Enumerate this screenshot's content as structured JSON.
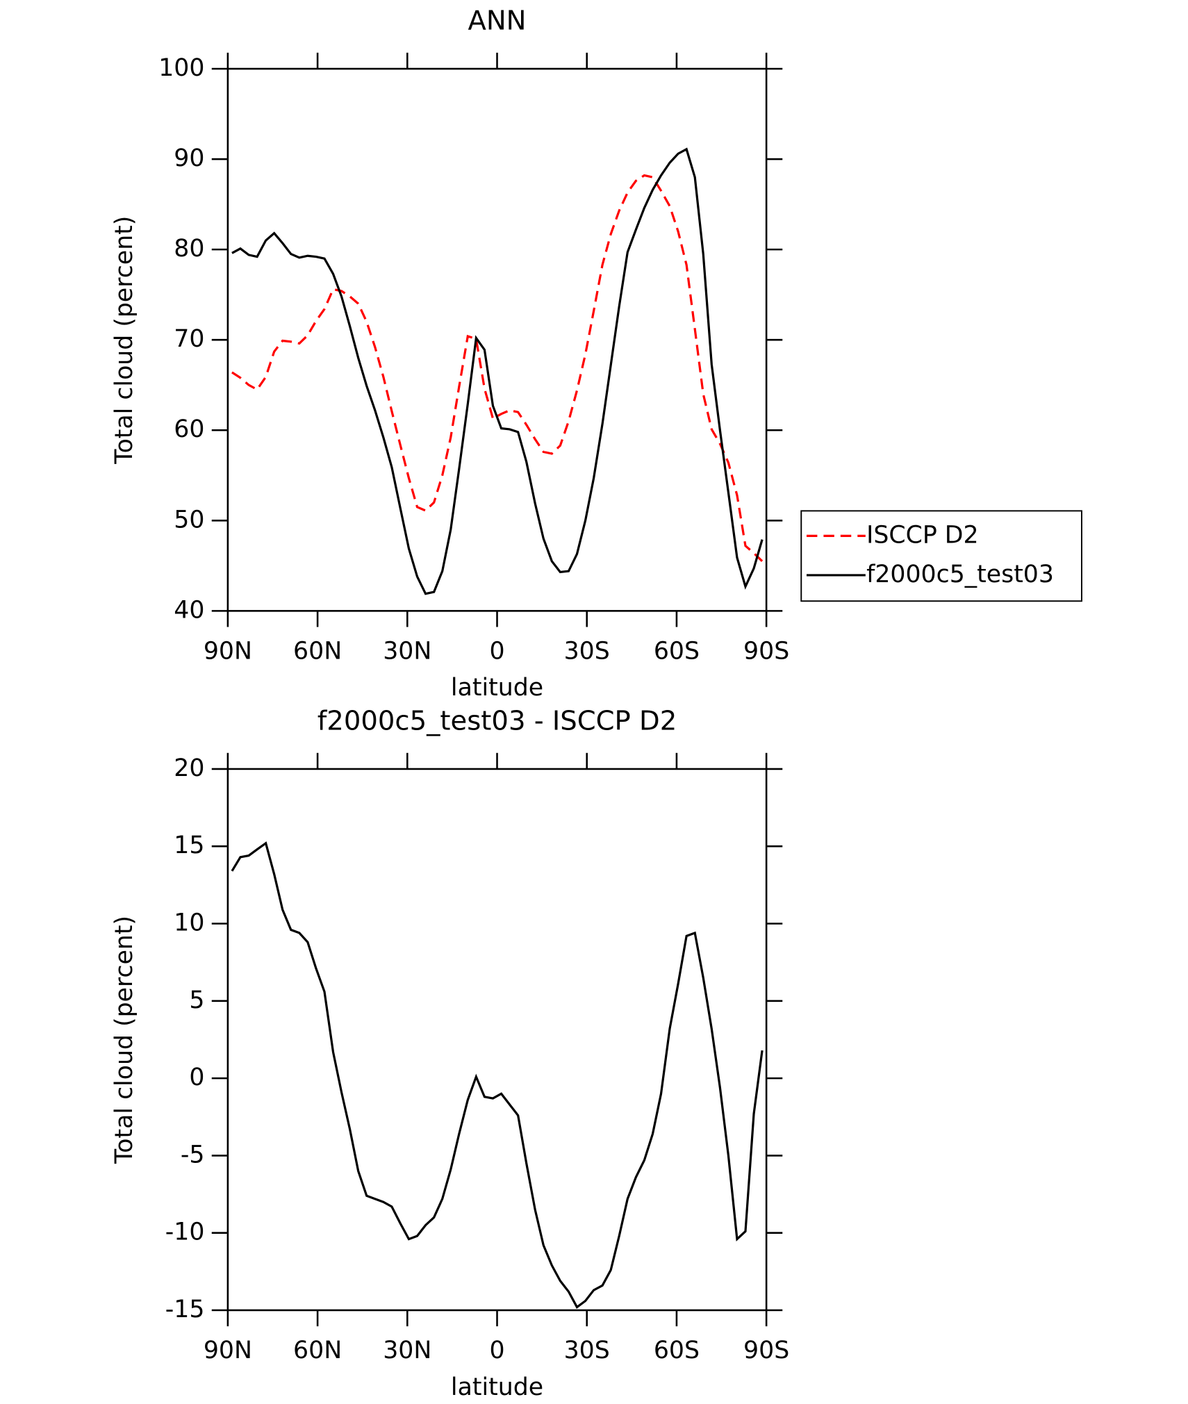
{
  "chart_data": [
    {
      "type": "line",
      "title": "ANN",
      "xlabel": "latitude",
      "ylabel": "Total cloud (percent)",
      "x": [
        88.6,
        85.8,
        83.0,
        80.2,
        77.3,
        74.5,
        71.7,
        68.9,
        66.1,
        63.3,
        60.5,
        57.7,
        54.8,
        52.0,
        49.2,
        46.4,
        43.6,
        40.8,
        38.0,
        35.2,
        32.3,
        29.5,
        26.7,
        23.9,
        21.1,
        18.3,
        15.5,
        12.7,
        9.8,
        7.0,
        4.2,
        1.4,
        -1.4,
        -4.2,
        -7.0,
        -9.8,
        -12.7,
        -15.5,
        -18.3,
        -21.1,
        -23.9,
        -26.7,
        -29.5,
        -32.3,
        -35.2,
        -38.0,
        -40.8,
        -43.6,
        -46.4,
        -49.2,
        -52.0,
        -54.8,
        -57.7,
        -60.5,
        -63.3,
        -66.1,
        -68.9,
        -71.7,
        -74.5,
        -77.3,
        -80.2,
        -83.0,
        -85.8,
        -88.6
      ],
      "series": [
        {
          "name": "ISCCP D2",
          "color": "#ff0000",
          "style": "dashed",
          "values": [
            66.4,
            65.8,
            65.0,
            64.5,
            65.9,
            68.7,
            69.9,
            69.8,
            69.6,
            70.5,
            72.1,
            73.4,
            75.6,
            75.4,
            74.8,
            74.0,
            72.0,
            69.2,
            65.9,
            62.1,
            58.3,
            54.7,
            51.5,
            51.1,
            52.0,
            55.0,
            59.2,
            64.8,
            70.4,
            70.1,
            64.6,
            61.3,
            61.8,
            62.2,
            62.0,
            60.6,
            59.0,
            57.6,
            57.4,
            58.3,
            61.0,
            64.4,
            68.4,
            73.2,
            78.3,
            81.7,
            84.3,
            86.3,
            87.6,
            88.2,
            88.0,
            86.5,
            84.8,
            82.0,
            78.3,
            71.2,
            64.0,
            60.1,
            58.5,
            56.4,
            52.8,
            47.2,
            46.4,
            45.5
          ]
        },
        {
          "name": "f2000c5_test03",
          "color": "#000000",
          "style": "solid",
          "values": [
            79.6,
            80.1,
            79.4,
            79.2,
            81.0,
            81.8,
            80.7,
            79.5,
            79.1,
            79.3,
            79.2,
            79.0,
            77.3,
            74.8,
            71.5,
            68.0,
            64.9,
            62.2,
            59.2,
            55.9,
            51.3,
            46.9,
            43.8,
            41.9,
            42.1,
            44.4,
            49.0,
            55.7,
            62.9,
            70.2,
            68.9,
            62.7,
            60.2,
            60.1,
            59.8,
            56.5,
            51.9,
            48.0,
            45.5,
            44.3,
            44.4,
            46.3,
            50.0,
            54.7,
            60.7,
            67.2,
            73.7,
            79.7,
            82.2,
            84.6,
            86.6,
            88.2,
            89.6,
            90.6,
            91.1,
            88.0,
            79.5,
            67.3,
            60.0,
            53.1,
            45.9,
            42.7,
            44.7,
            47.9
          ]
        }
      ],
      "xlim": [
        90,
        -90
      ],
      "xticks": [
        {
          "value": 90,
          "label": "90N"
        },
        {
          "value": 60,
          "label": "60N"
        },
        {
          "value": 30,
          "label": "30N"
        },
        0,
        {
          "value": -30,
          "label": "30S"
        },
        {
          "value": -60,
          "label": "60S"
        },
        {
          "value": -90,
          "label": "90S"
        }
      ],
      "ylim": [
        40,
        100
      ],
      "yticks": [
        40,
        50,
        60,
        70,
        80,
        90,
        100
      ],
      "legend": "right"
    },
    {
      "type": "line",
      "title": "f2000c5_test03 - ISCCP D2",
      "xlabel": "latitude",
      "ylabel": "Total cloud (percent)",
      "x": [
        88.6,
        85.8,
        83.0,
        80.2,
        77.3,
        74.5,
        71.7,
        68.9,
        66.1,
        63.3,
        60.5,
        57.7,
        54.8,
        52.0,
        49.2,
        46.4,
        43.6,
        40.8,
        38.0,
        35.2,
        32.3,
        29.5,
        26.7,
        23.9,
        21.1,
        18.3,
        15.5,
        12.7,
        9.8,
        7.0,
        4.2,
        1.4,
        -1.4,
        -4.2,
        -7.0,
        -9.8,
        -12.7,
        -15.5,
        -18.3,
        -21.1,
        -23.9,
        -26.7,
        -29.5,
        -32.3,
        -35.2,
        -38.0,
        -40.8,
        -43.6,
        -46.4,
        -49.2,
        -52.0,
        -54.8,
        -57.7,
        -60.5,
        -63.3,
        -66.1,
        -68.9,
        -71.7,
        -74.5,
        -77.3,
        -80.2,
        -83.0,
        -85.8,
        -88.6
      ],
      "series": [
        {
          "color": "#000000",
          "style": "solid",
          "values": [
            13.4,
            14.3,
            14.4,
            14.8,
            15.2,
            13.2,
            10.9,
            9.6,
            9.4,
            8.8,
            7.1,
            5.6,
            1.7,
            -0.9,
            -3.3,
            -6.0,
            -7.6,
            -7.8,
            -8.0,
            -8.3,
            -9.4,
            -10.4,
            -10.2,
            -9.5,
            -9.0,
            -7.8,
            -5.9,
            -3.6,
            -1.4,
            0.1,
            -1.2,
            -1.3,
            -1.0,
            -1.7,
            -2.4,
            -5.5,
            -8.5,
            -10.8,
            -12.1,
            -13.1,
            -13.8,
            -14.8,
            -14.4,
            -13.7,
            -13.4,
            -12.4,
            -10.2,
            -7.8,
            -6.4,
            -5.3,
            -3.6,
            -1.0,
            3.2,
            6.1,
            9.2,
            9.4,
            6.5,
            3.2,
            -0.6,
            -5.0,
            -10.4,
            -9.9,
            -2.3,
            1.8
          ]
        }
      ],
      "xlim": [
        90,
        -90
      ],
      "xticks": [
        {
          "value": 90,
          "label": "90N"
        },
        {
          "value": 60,
          "label": "60N"
        },
        {
          "value": 30,
          "label": "30N"
        },
        0,
        {
          "value": -30,
          "label": "30S"
        },
        {
          "value": -60,
          "label": "60S"
        },
        {
          "value": -90,
          "label": "90S"
        }
      ],
      "ylim": [
        -15,
        20
      ],
      "yticks": [
        -15,
        -10,
        -5,
        0,
        5,
        10,
        15,
        20
      ]
    }
  ]
}
